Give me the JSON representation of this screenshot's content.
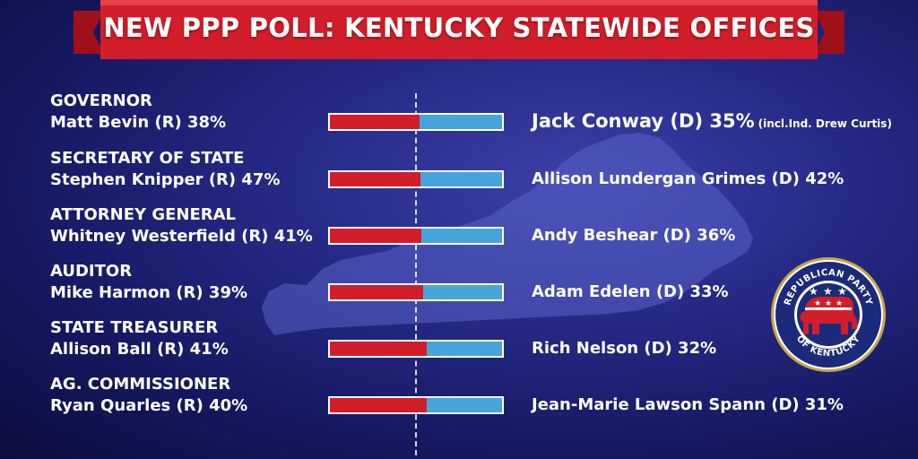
{
  "banner": {
    "title": "NEW PPP POLL:  KENTUCKY STATEWIDE OFFICES"
  },
  "colors": {
    "republican": "#d21e2a",
    "democrat": "#47a4da",
    "banner": "#d21e2a",
    "background": "#262a86"
  },
  "logo": {
    "ring_text_top": "REPUBLICAN PARTY",
    "ring_text_bottom": "OF KENTUCKY",
    "icon": "elephant-icon"
  },
  "races": [
    {
      "office": "GOVERNOR",
      "rep_label": "Matt Bevin (R) 38%",
      "dem_label": "Jack Conway (D) 35%",
      "note": "(incl.Ind. Drew Curtis)"
    },
    {
      "office": "SECRETARY OF STATE",
      "rep_label": "Stephen Knipper (R) 47%",
      "dem_label": "Allison Lundergan Grimes (D) 42%"
    },
    {
      "office": "ATTORNEY GENERAL",
      "rep_label": "Whitney Westerfield (R) 41%",
      "dem_label": "Andy Beshear (D) 36%"
    },
    {
      "office": "AUDITOR",
      "rep_label": "Mike Harmon (R) 39%",
      "dem_label": "Adam Edelen (D) 33%"
    },
    {
      "office": "STATE TREASURER",
      "rep_label": "Allison Ball (R) 41%",
      "dem_label": "Rich Nelson (D) 32%"
    },
    {
      "office": "AG. COMMISSIONER",
      "rep_label": "Ryan Quarles (R) 40%",
      "dem_label": "Jean-Marie Lawson Spann (D) 31%"
    }
  ],
  "chart_data": {
    "type": "bar",
    "orientation": "horizontal-stacked-share",
    "categories": [
      "GOVERNOR",
      "SECRETARY OF STATE",
      "ATTORNEY GENERAL",
      "AUDITOR",
      "STATE TREASURER",
      "AG. COMMISSIONER"
    ],
    "series": [
      {
        "name": "R",
        "values": [
          38,
          47,
          41,
          39,
          41,
          40
        ]
      },
      {
        "name": "D",
        "values": [
          35,
          42,
          36,
          33,
          32,
          31
        ]
      }
    ]
  }
}
